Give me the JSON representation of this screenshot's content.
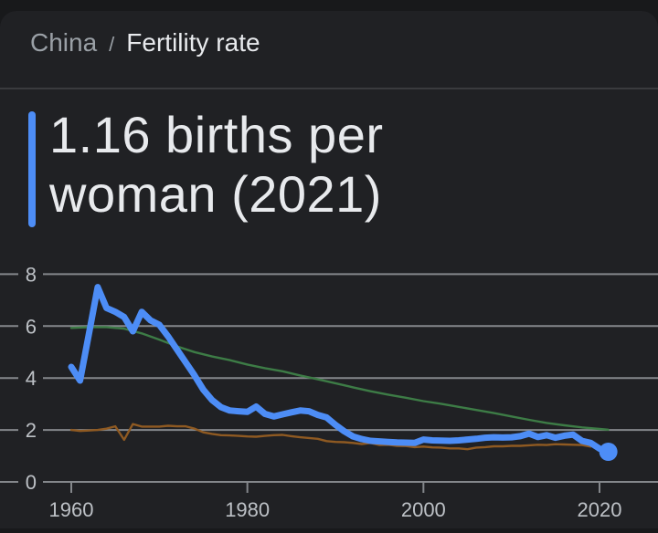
{
  "breadcrumb": {
    "parent": "China",
    "separator": "/",
    "current": "Fertility rate"
  },
  "title": {
    "text": "1.16 births per woman (2021)"
  },
  "colors": {
    "page_edge": "#18191b",
    "background": "#202124",
    "divider": "#3a3b3e",
    "text_primary": "#e8eaed",
    "text_secondary": "#9aa0a6",
    "axis_label": "#bdc1c6",
    "gridline": "#84878b",
    "accent_blue": "#4d8df6",
    "comparison_green": "#3d7c46",
    "comparison_brown": "#8f5a22"
  },
  "chart_data": {
    "type": "line",
    "title": "Fertility rate (births per woman)",
    "xlabel": "",
    "ylabel": "",
    "ylim": [
      0,
      8
    ],
    "yticks": [
      0,
      2,
      4,
      6,
      8
    ],
    "xticks": [
      1960,
      1980,
      2000,
      2020
    ],
    "grid": true,
    "legend_position": "none",
    "latest_point": {
      "year": 2021,
      "value": 1.16
    },
    "series": [
      {
        "name": "Comparison series (green)",
        "color_key": "comparison_green",
        "emphasis": "secondary",
        "dom_name": "comparison-line-green",
        "end_dot": false,
        "points": [
          [
            1960,
            5.93
          ],
          [
            1962,
            5.96
          ],
          [
            1964,
            5.96
          ],
          [
            1966,
            5.9
          ],
          [
            1968,
            5.72
          ],
          [
            1970,
            5.48
          ],
          [
            1972,
            5.22
          ],
          [
            1974,
            5.0
          ],
          [
            1976,
            4.83
          ],
          [
            1978,
            4.69
          ],
          [
            1980,
            4.52
          ],
          [
            1982,
            4.38
          ],
          [
            1984,
            4.26
          ],
          [
            1986,
            4.1
          ],
          [
            1988,
            3.95
          ],
          [
            1990,
            3.8
          ],
          [
            1992,
            3.64
          ],
          [
            1994,
            3.49
          ],
          [
            1996,
            3.36
          ],
          [
            1998,
            3.24
          ],
          [
            2000,
            3.11
          ],
          [
            2002,
            3.01
          ],
          [
            2004,
            2.89
          ],
          [
            2006,
            2.77
          ],
          [
            2008,
            2.65
          ],
          [
            2010,
            2.52
          ],
          [
            2012,
            2.39
          ],
          [
            2014,
            2.27
          ],
          [
            2016,
            2.18
          ],
          [
            2018,
            2.1
          ],
          [
            2020,
            2.04
          ],
          [
            2021,
            2.01
          ]
        ]
      },
      {
        "name": "Comparison series (brown)",
        "color_key": "comparison_brown",
        "emphasis": "secondary",
        "dom_name": "comparison-line-brown",
        "end_dot": false,
        "points": [
          [
            1960,
            2.0
          ],
          [
            1961,
            1.96
          ],
          [
            1962,
            1.98
          ],
          [
            1963,
            2.0
          ],
          [
            1964,
            2.05
          ],
          [
            1965,
            2.14
          ],
          [
            1966,
            1.62
          ],
          [
            1967,
            2.23
          ],
          [
            1968,
            2.13
          ],
          [
            1969,
            2.13
          ],
          [
            1970,
            2.13
          ],
          [
            1971,
            2.16
          ],
          [
            1972,
            2.14
          ],
          [
            1973,
            2.14
          ],
          [
            1974,
            2.05
          ],
          [
            1975,
            1.91
          ],
          [
            1976,
            1.85
          ],
          [
            1977,
            1.8
          ],
          [
            1978,
            1.79
          ],
          [
            1979,
            1.77
          ],
          [
            1980,
            1.75
          ],
          [
            1981,
            1.74
          ],
          [
            1982,
            1.77
          ],
          [
            1983,
            1.8
          ],
          [
            1984,
            1.81
          ],
          [
            1985,
            1.76
          ],
          [
            1986,
            1.72
          ],
          [
            1987,
            1.69
          ],
          [
            1988,
            1.66
          ],
          [
            1989,
            1.57
          ],
          [
            1990,
            1.54
          ],
          [
            1991,
            1.53
          ],
          [
            1992,
            1.5
          ],
          [
            1993,
            1.46
          ],
          [
            1994,
            1.5
          ],
          [
            1995,
            1.42
          ],
          [
            1996,
            1.43
          ],
          [
            1997,
            1.39
          ],
          [
            1998,
            1.38
          ],
          [
            1999,
            1.34
          ],
          [
            2000,
            1.36
          ],
          [
            2001,
            1.33
          ],
          [
            2002,
            1.32
          ],
          [
            2003,
            1.29
          ],
          [
            2004,
            1.29
          ],
          [
            2005,
            1.26
          ],
          [
            2006,
            1.32
          ],
          [
            2007,
            1.34
          ],
          [
            2008,
            1.37
          ],
          [
            2009,
            1.37
          ],
          [
            2010,
            1.39
          ],
          [
            2011,
            1.39
          ],
          [
            2012,
            1.41
          ],
          [
            2013,
            1.43
          ],
          [
            2014,
            1.42
          ],
          [
            2015,
            1.45
          ],
          [
            2016,
            1.44
          ],
          [
            2017,
            1.43
          ],
          [
            2018,
            1.42
          ],
          [
            2019,
            1.36
          ]
        ]
      },
      {
        "name": "China",
        "color_key": "accent_blue",
        "emphasis": "primary",
        "dom_name": "china-fertility-line",
        "end_dot": true,
        "points": [
          [
            1960,
            4.43
          ],
          [
            1961,
            3.9
          ],
          [
            1962,
            5.7
          ],
          [
            1963,
            7.5
          ],
          [
            1964,
            6.7
          ],
          [
            1965,
            6.55
          ],
          [
            1966,
            6.35
          ],
          [
            1967,
            5.8
          ],
          [
            1968,
            6.55
          ],
          [
            1969,
            6.22
          ],
          [
            1970,
            6.05
          ],
          [
            1971,
            5.6
          ],
          [
            1972,
            5.1
          ],
          [
            1973,
            4.6
          ],
          [
            1974,
            4.1
          ],
          [
            1975,
            3.55
          ],
          [
            1976,
            3.15
          ],
          [
            1977,
            2.88
          ],
          [
            1978,
            2.75
          ],
          [
            1979,
            2.72
          ],
          [
            1980,
            2.7
          ],
          [
            1981,
            2.9
          ],
          [
            1982,
            2.62
          ],
          [
            1983,
            2.52
          ],
          [
            1984,
            2.6
          ],
          [
            1985,
            2.68
          ],
          [
            1986,
            2.75
          ],
          [
            1987,
            2.72
          ],
          [
            1988,
            2.58
          ],
          [
            1989,
            2.48
          ],
          [
            1990,
            2.2
          ],
          [
            1991,
            1.95
          ],
          [
            1992,
            1.75
          ],
          [
            1993,
            1.65
          ],
          [
            1994,
            1.58
          ],
          [
            1995,
            1.56
          ],
          [
            1996,
            1.54
          ],
          [
            1997,
            1.52
          ],
          [
            1998,
            1.51
          ],
          [
            1999,
            1.5
          ],
          [
            2000,
            1.63
          ],
          [
            2001,
            1.6
          ],
          [
            2002,
            1.59
          ],
          [
            2003,
            1.58
          ],
          [
            2004,
            1.6
          ],
          [
            2005,
            1.63
          ],
          [
            2006,
            1.66
          ],
          [
            2007,
            1.7
          ],
          [
            2008,
            1.72
          ],
          [
            2009,
            1.71
          ],
          [
            2010,
            1.72
          ],
          [
            2011,
            1.76
          ],
          [
            2012,
            1.86
          ],
          [
            2013,
            1.73
          ],
          [
            2014,
            1.8
          ],
          [
            2015,
            1.7
          ],
          [
            2016,
            1.78
          ],
          [
            2017,
            1.82
          ],
          [
            2018,
            1.58
          ],
          [
            2019,
            1.5
          ],
          [
            2020,
            1.28
          ],
          [
            2021,
            1.16
          ]
        ]
      }
    ]
  }
}
